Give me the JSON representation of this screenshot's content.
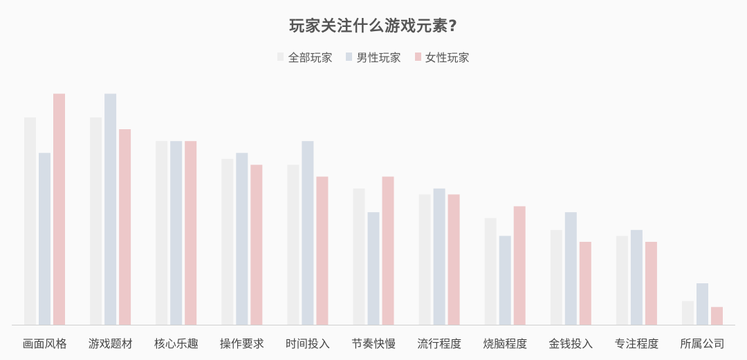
{
  "chart_data": {
    "type": "bar",
    "title": "玩家关注什么游戏元素?",
    "xlabel": "",
    "ylabel": "",
    "legend_position": "top-center",
    "grid": false,
    "categories": [
      "画面风格",
      "游戏题材",
      "核心乐趣",
      "操作要求",
      "时间投入",
      "节奏快慢",
      "流行程度",
      "烧脑程度",
      "金钱投入",
      "专注程度",
      "所属公司"
    ],
    "ylim": [
      0,
      40
    ],
    "series": [
      {
        "name": "全部玩家",
        "color": "#eeeeee",
        "values": [
          35,
          35,
          31,
          28,
          27,
          23,
          22,
          18,
          16,
          15,
          4
        ]
      },
      {
        "name": "男性玩家",
        "color": "#d6dde6",
        "values": [
          29,
          39,
          31,
          29,
          31,
          19,
          23,
          15,
          19,
          16,
          7
        ]
      },
      {
        "name": "女性玩家",
        "color": "#edc8c9",
        "values": [
          39,
          33,
          31,
          27,
          25,
          25,
          22,
          20,
          14,
          14,
          3
        ]
      }
    ]
  }
}
